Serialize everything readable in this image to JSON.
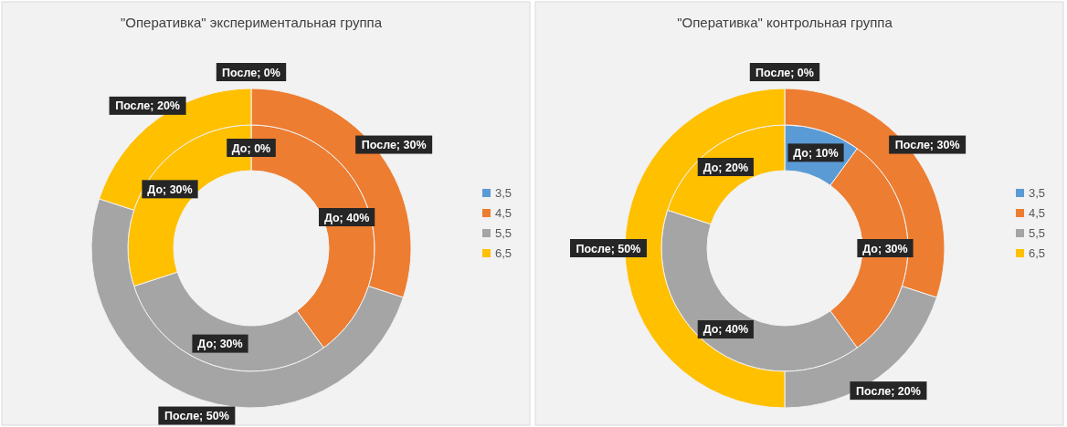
{
  "chart_data": [
    {
      "type": "donut",
      "title": "\"Оперативка\" экспериментальная группа",
      "categories": [
        "3,5",
        "4,5",
        "5,5",
        "6,5"
      ],
      "colors": [
        "#5b9bd5",
        "#ed7d31",
        "#a5a5a5",
        "#ffc000"
      ],
      "legend": "right",
      "series": [
        {
          "values": [
            0,
            40,
            30,
            30
          ],
          "value_labels": [
            "До; 0%",
            "До; 40%",
            "До; 30%",
            "До; 30%"
          ]
        },
        {
          "values": [
            0,
            30,
            50,
            20
          ],
          "value_labels": [
            "После; 0%",
            "После; 30%",
            "После; 50%",
            "После; 20%"
          ]
        }
      ]
    },
    {
      "type": "donut",
      "title": "\"Оперативка\" контрольная группа",
      "categories": [
        "3,5",
        "4,5",
        "5,5",
        "6,5"
      ],
      "colors": [
        "#5b9bd5",
        "#ed7d31",
        "#a5a5a5",
        "#ffc000"
      ],
      "legend": "right",
      "series": [
        {
          "values": [
            10,
            30,
            40,
            20
          ],
          "value_labels": [
            "До; 10%",
            "До; 30%",
            "До; 40%",
            "До; 20%"
          ]
        },
        {
          "values": [
            0,
            30,
            20,
            50
          ],
          "value_labels": [
            "После; 0%",
            "После; 30%",
            "После; 20%",
            "После; 50%"
          ]
        }
      ]
    }
  ]
}
